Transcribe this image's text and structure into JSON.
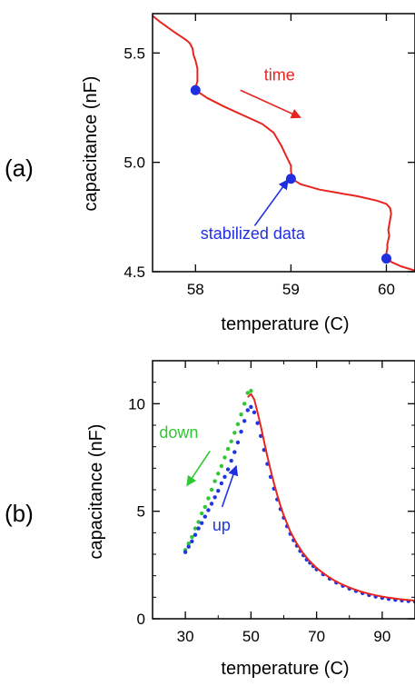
{
  "colors": {
    "heating_trace": "#e8241f",
    "stabilized": "#1f2fe0",
    "down": "#2fc832",
    "up": "#2035e0",
    "axis": "#000000"
  },
  "chart_data": [
    {
      "panel_label": "(a)",
      "type": "line",
      "xlabel": "temperature  (C)",
      "ylabel": "capacitance  (nF)",
      "xlim": [
        57.55,
        60.3
      ],
      "ylim": [
        4.5,
        5.68
      ],
      "xticks": [
        58,
        59,
        60
      ],
      "x_tick_labels": [
        "58",
        "59",
        "60"
      ],
      "yticks": [
        4.5,
        5.0,
        5.5
      ],
      "y_tick_labels": [
        "4.5",
        "5.0",
        "5.5"
      ],
      "series": [
        {
          "color": "#e8241f",
          "points": [
            [
              57.55,
              5.67
            ],
            [
              57.62,
              5.645
            ],
            [
              57.7,
              5.62
            ],
            [
              57.78,
              5.595
            ],
            [
              57.85,
              5.575
            ],
            [
              57.9,
              5.56
            ],
            [
              57.94,
              5.545
            ],
            [
              57.97,
              5.52
            ],
            [
              57.98,
              5.49
            ],
            [
              58.0,
              5.465
            ],
            [
              58.02,
              5.43
            ],
            [
              58.02,
              5.395
            ],
            [
              58.02,
              5.37
            ],
            [
              58.01,
              5.355
            ],
            [
              57.99,
              5.345
            ],
            [
              58.0,
              5.33
            ],
            [
              58.12,
              5.295
            ],
            [
              58.3,
              5.255
            ],
            [
              58.5,
              5.215
            ],
            [
              58.7,
              5.175
            ],
            [
              58.82,
              5.135
            ],
            [
              58.9,
              5.075
            ],
            [
              58.96,
              5.02
            ],
            [
              59.0,
              4.985
            ],
            [
              59.0,
              4.96
            ],
            [
              59.01,
              4.94
            ],
            [
              59.01,
              4.925
            ],
            [
              59.1,
              4.9
            ],
            [
              59.3,
              4.875
            ],
            [
              59.5,
              4.86
            ],
            [
              59.7,
              4.845
            ],
            [
              59.9,
              4.825
            ],
            [
              60.0,
              4.81
            ],
            [
              60.04,
              4.79
            ],
            [
              60.05,
              4.765
            ],
            [
              60.04,
              4.74
            ],
            [
              60.03,
              4.715
            ],
            [
              60.02,
              4.69
            ],
            [
              60.03,
              4.665
            ],
            [
              60.02,
              4.645
            ],
            [
              60.01,
              4.625
            ],
            [
              60.01,
              4.605
            ],
            [
              60.0,
              4.585
            ],
            [
              60.01,
              4.565
            ],
            [
              60.05,
              4.545
            ],
            [
              60.15,
              4.525
            ],
            [
              60.3,
              4.505
            ]
          ]
        },
        {
          "name": "stabilized data",
          "color": "#1f2fe0",
          "marker": "dot",
          "points": [
            [
              58.0,
              5.33
            ],
            [
              59.0,
              4.925
            ],
            [
              60.0,
              4.56
            ]
          ]
        }
      ],
      "annotations": [
        {
          "text": "time",
          "color": "#e8241f",
          "x": 58.88,
          "y": 5.375,
          "arrow": {
            "from": [
              58.47,
              5.33
            ],
            "to": [
              59.1,
              5.205
            ]
          }
        },
        {
          "text": "stabilized data",
          "color": "#1f2fe0",
          "x": 58.6,
          "y": 4.65,
          "arrow": {
            "from": [
              58.62,
              4.71
            ],
            "to": [
              58.97,
              4.92
            ]
          }
        }
      ]
    },
    {
      "panel_label": "(b)",
      "type": "scatter",
      "xlabel": "temperature  (C)",
      "ylabel": "capacitance  (nF)",
      "xlim": [
        20,
        100
      ],
      "ylim": [
        0,
        12
      ],
      "xticks": [
        30,
        50,
        70,
        90
      ],
      "x_tick_labels": [
        "30",
        "50",
        "70",
        "90"
      ],
      "yticks": [
        0,
        5,
        10
      ],
      "y_tick_labels": [
        "0",
        "5",
        "10"
      ],
      "series": [
        {
          "name": "down",
          "color": "#2fc832",
          "marker": "dot",
          "points": [
            [
              30,
              3.2
            ],
            [
              31,
              3.5
            ],
            [
              32,
              3.8
            ],
            [
              33,
              4.2
            ],
            [
              34,
              4.5
            ],
            [
              35,
              4.9
            ],
            [
              36,
              5.2
            ],
            [
              37,
              5.6
            ],
            [
              38,
              6.0
            ],
            [
              39,
              6.4
            ],
            [
              40,
              6.75
            ],
            [
              41,
              7.1
            ],
            [
              42,
              7.5
            ],
            [
              43,
              7.9
            ],
            [
              44,
              8.25
            ],
            [
              45,
              8.65
            ],
            [
              46,
              9.05
            ],
            [
              47,
              9.5
            ],
            [
              48,
              10.0
            ],
            [
              49,
              10.5
            ],
            [
              50,
              10.6
            ]
          ]
        },
        {
          "name": "up",
          "color": "#2035e0",
          "marker": "dot",
          "points": [
            [
              30,
              3.1
            ],
            [
              31,
              3.35
            ],
            [
              32,
              3.6
            ],
            [
              33,
              3.9
            ],
            [
              34,
              4.2
            ],
            [
              35,
              4.45
            ],
            [
              36,
              4.75
            ],
            [
              37,
              5.05
            ],
            [
              38,
              5.35
            ],
            [
              39,
              5.65
            ],
            [
              40,
              5.95
            ],
            [
              41,
              6.3
            ],
            [
              42,
              6.6
            ],
            [
              43,
              6.95
            ],
            [
              44,
              7.35
            ],
            [
              45,
              7.75
            ],
            [
              46,
              8.2
            ],
            [
              47,
              8.7
            ],
            [
              48,
              9.2
            ],
            [
              49,
              9.7
            ],
            [
              50,
              9.85
            ]
          ]
        },
        {
          "color": "#2035e0",
          "marker": "dot",
          "points": [
            [
              51,
              9.6
            ],
            [
              52,
              9.1
            ],
            [
              53,
              8.5
            ],
            [
              54,
              7.85
            ],
            [
              55,
              7.2
            ],
            [
              56,
              6.6
            ],
            [
              57,
              6.05
            ],
            [
              58,
              5.55
            ],
            [
              59,
              5.1
            ],
            [
              60,
              4.7
            ],
            [
              61,
              4.3
            ],
            [
              62,
              3.95
            ],
            [
              63,
              3.65
            ],
            [
              64,
              3.4
            ],
            [
              65,
              3.15
            ],
            [
              66,
              2.95
            ],
            [
              67,
              2.75
            ],
            [
              68,
              2.6
            ],
            [
              69,
              2.45
            ],
            [
              70,
              2.3
            ],
            [
              72,
              2.07
            ],
            [
              74,
              1.86
            ],
            [
              76,
              1.68
            ],
            [
              78,
              1.53
            ],
            [
              80,
              1.4
            ],
            [
              82,
              1.29
            ],
            [
              84,
              1.19
            ],
            [
              86,
              1.1
            ],
            [
              88,
              1.03
            ],
            [
              90,
              0.97
            ],
            [
              92,
              0.92
            ],
            [
              94,
              0.88
            ],
            [
              96,
              0.85
            ],
            [
              98,
              0.82
            ],
            [
              100,
              0.8
            ]
          ]
        },
        {
          "color": "#e8241f",
          "points": [
            [
              49,
              10.3
            ],
            [
              50,
              10.45
            ],
            [
              51,
              10.2
            ],
            [
              52,
              9.6
            ],
            [
              53,
              8.95
            ],
            [
              54,
              8.25
            ],
            [
              55,
              7.55
            ],
            [
              56,
              6.9
            ],
            [
              57,
              6.3
            ],
            [
              58,
              5.75
            ],
            [
              59,
              5.25
            ],
            [
              60,
              4.8
            ],
            [
              62,
              4.05
            ],
            [
              64,
              3.48
            ],
            [
              66,
              3.02
            ],
            [
              68,
              2.66
            ],
            [
              70,
              2.36
            ],
            [
              72,
              2.12
            ],
            [
              74,
              1.91
            ],
            [
              76,
              1.73
            ],
            [
              78,
              1.58
            ],
            [
              80,
              1.45
            ],
            [
              82,
              1.34
            ],
            [
              84,
              1.24
            ],
            [
              86,
              1.16
            ],
            [
              88,
              1.09
            ],
            [
              90,
              1.03
            ],
            [
              92,
              0.98
            ],
            [
              94,
              0.94
            ],
            [
              96,
              0.9
            ],
            [
              98,
              0.87
            ],
            [
              100,
              0.84
            ]
          ]
        }
      ],
      "annotations": [
        {
          "text": "down",
          "color": "#2fc832",
          "x": 28,
          "y": 8.4,
          "arrow": {
            "from": [
              37.5,
              7.8
            ],
            "to": [
              30.5,
              6.2
            ]
          }
        },
        {
          "text": "up",
          "color": "#2035e0",
          "x": 41,
          "y": 4.1,
          "arrow": {
            "from": [
              41.2,
              5.2
            ],
            "to": [
              45.5,
              7.1
            ]
          }
        }
      ]
    }
  ]
}
